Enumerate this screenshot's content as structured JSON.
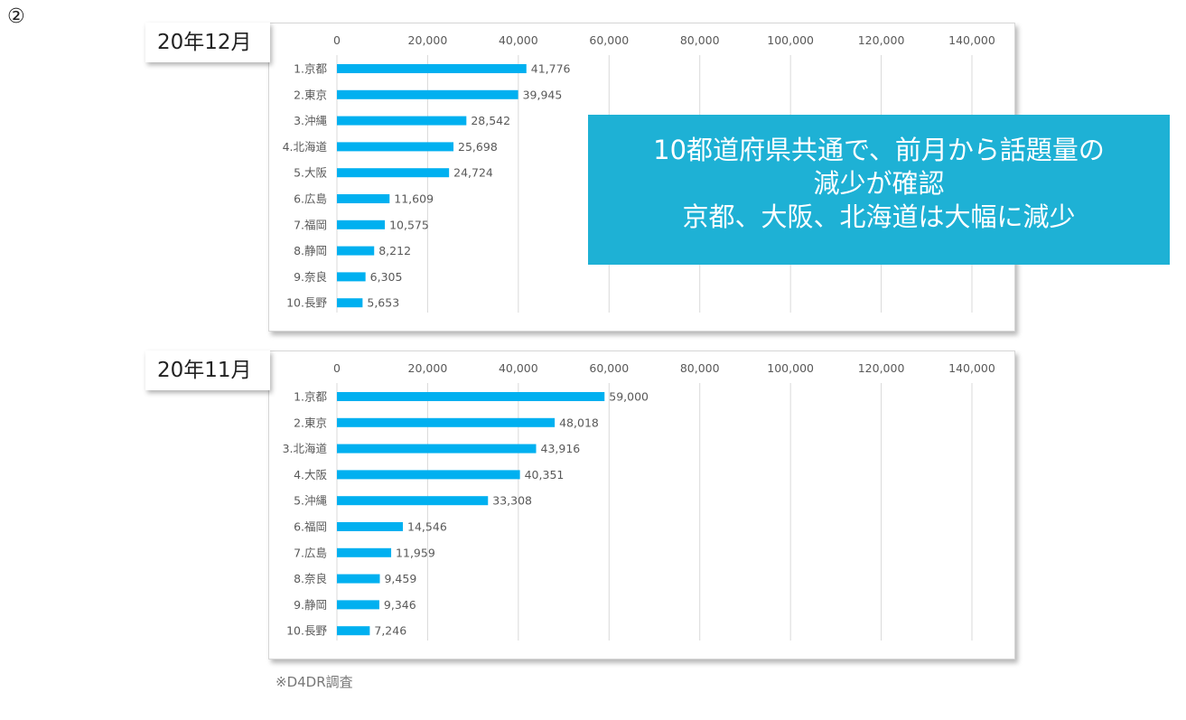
{
  "page_marker": "②",
  "colors": {
    "bar": "#00b0f0",
    "grid": "#d9d9d9",
    "callout_bg": "#1eb1d5"
  },
  "callout": {
    "line1": "10都道府県共通で、前月から話題量の",
    "line2": "減少が確認",
    "line3": "京都、大阪、北海道は大幅に減少"
  },
  "source_note": "※D4DR調査",
  "chart_data": [
    {
      "type": "bar",
      "orientation": "horizontal",
      "period_label": "20年12月",
      "title": "",
      "xlabel": "",
      "ylabel": "",
      "xlim": [
        0,
        140000
      ],
      "ticks": [
        "0",
        "20,000",
        "40,000",
        "60,000",
        "80,000",
        "100,000",
        "120,000",
        "140,000"
      ],
      "grid": true,
      "categories": [
        "1.京都",
        "2.東京",
        "3.沖縄",
        "4.北海道",
        "5.大阪",
        "6.広島",
        "7.福岡",
        "8.静岡",
        "9.奈良",
        "10.長野"
      ],
      "values": [
        41776,
        39945,
        28542,
        25698,
        24724,
        11609,
        10575,
        8212,
        6305,
        5653
      ],
      "value_labels": [
        "41,776",
        "39,945",
        "28,542",
        "25,698",
        "24,724",
        "11,609",
        "10,575",
        "8,212",
        "6,305",
        "5,653"
      ]
    },
    {
      "type": "bar",
      "orientation": "horizontal",
      "period_label": "20年11月",
      "title": "",
      "xlabel": "",
      "ylabel": "",
      "xlim": [
        0,
        140000
      ],
      "ticks": [
        "0",
        "20,000",
        "40,000",
        "60,000",
        "80,000",
        "100,000",
        "120,000",
        "140,000"
      ],
      "grid": true,
      "categories": [
        "1.京都",
        "2.東京",
        "3.北海道",
        "4.大阪",
        "5.沖縄",
        "6.福岡",
        "7.広島",
        "8.奈良",
        "9.静岡",
        "10.長野"
      ],
      "values": [
        59000,
        48018,
        43916,
        40351,
        33308,
        14546,
        11959,
        9459,
        9346,
        7246
      ],
      "value_labels": [
        "59,000",
        "48,018",
        "43,916",
        "40,351",
        "33,308",
        "14,546",
        "11,959",
        "9,459",
        "9,346",
        "7,246"
      ]
    }
  ]
}
